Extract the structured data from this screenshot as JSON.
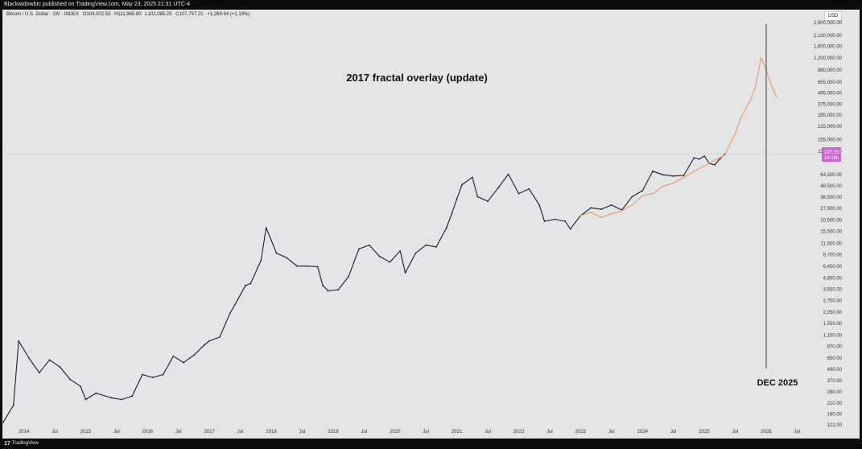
{
  "header": {
    "published_text": "Blackwidowbtc published on TradingView.com, May 23, 2025 21:31 UTC-4"
  },
  "symbol_legend": {
    "name": "Bitcoin / U.S. Dollar · 1W · INDEX",
    "open": "O104,002.53",
    "high": "H111,965.80",
    "low": "L102,085.25",
    "close": "C107,757.21",
    "change": "+1,269.94 (+1.19%)"
  },
  "currency_button": "USD",
  "footer": {
    "logo_mark": "17",
    "brand": "TradingView"
  },
  "colors": {
    "price_line": "#1b1b24",
    "fractal_overlay": "#f0a074",
    "marker_line": "#3a3a3a",
    "price_label_bg": "#c866d0",
    "background": "#e4e5e7"
  },
  "chart_data": {
    "type": "line",
    "scale": "log",
    "title": "2017 fractal overlay (update)",
    "annotation": "DEC 2025",
    "current_price_label": "107,757.21",
    "countdown_label": "14:28h",
    "x_tick_labels": [
      "2014",
      "Jul",
      "2015",
      "Jul",
      "2016",
      "Jul",
      "2017",
      "Jul",
      "2018",
      "Jul",
      "2019",
      "Jul",
      "2020",
      "Jul",
      "2021",
      "Jul",
      "2022",
      "Jul",
      "2023",
      "Jul",
      "2024",
      "Jul",
      "2025",
      "Jul",
      "2026",
      "Jul"
    ],
    "y_tick_labels": [
      "2,900,000.00",
      "2,100,000.00",
      "1,600,000.00",
      "1,200,000.00",
      "880,000.00",
      "655,000.00",
      "495,000.00",
      "375,000.00",
      "285,000.00",
      "215,000.00",
      "155,000.00",
      "115,000.00",
      "64,500.00",
      "48,500.00",
      "36,500.00",
      "27,500.00",
      "20,500.00",
      "15,500.00",
      "11,500.00",
      "8,700.00",
      "6,450.00",
      "4,850.00",
      "3,650.00",
      "2,750.00",
      "2,050.00",
      "1,550.00",
      "1,150.00",
      "870.00",
      "650.00",
      "490.00",
      "370.00",
      "280.00",
      "210.00",
      "160.00",
      "122.00"
    ],
    "ylim": [
      122,
      2900000
    ],
    "xlim": [
      "2013-09",
      "2026-11"
    ],
    "grid": false,
    "series": [
      {
        "kind": "price",
        "x": [
          "2013-09",
          "2013-11",
          "2013-12",
          "2014-02",
          "2014-04",
          "2014-06",
          "2014-08",
          "2014-10",
          "2014-12",
          "2015-01",
          "2015-03",
          "2015-06",
          "2015-08",
          "2015-10",
          "2015-12",
          "2016-02",
          "2016-04",
          "2016-06",
          "2016-08",
          "2016-10",
          "2016-12",
          "2017-01",
          "2017-03",
          "2017-05",
          "2017-06",
          "2017-08",
          "2017-09",
          "2017-11",
          "2017-12",
          "2018-02",
          "2018-04",
          "2018-06",
          "2018-08",
          "2018-10",
          "2018-11",
          "2018-12",
          "2019-02",
          "2019-04",
          "2019-06",
          "2019-08",
          "2019-10",
          "2019-12",
          "2020-02",
          "2020-03",
          "2020-05",
          "2020-07",
          "2020-09",
          "2020-11",
          "2020-12",
          "2021-01",
          "2021-02",
          "2021-04",
          "2021-05",
          "2021-07",
          "2021-09",
          "2021-11",
          "2022-01",
          "2022-03",
          "2022-05",
          "2022-06",
          "2022-08",
          "2022-10",
          "2022-11",
          "2023-01",
          "2023-03",
          "2023-05",
          "2023-07",
          "2023-09",
          "2023-11",
          "2024-01",
          "2024-03",
          "2024-05",
          "2024-07",
          "2024-09",
          "2024-11",
          "2024-12",
          "2025-01",
          "2025-02",
          "2025-03",
          "2025-04",
          "2025-05"
        ],
        "y": [
          130,
          200,
          1000,
          650,
          450,
          620,
          520,
          380,
          320,
          230,
          270,
          240,
          230,
          250,
          430,
          400,
          430,
          680,
          580,
          700,
          900,
          1000,
          1100,
          2000,
          2500,
          4000,
          4200,
          7500,
          17000,
          9000,
          8000,
          6500,
          6500,
          6400,
          4000,
          3500,
          3600,
          5000,
          10000,
          11000,
          8300,
          7200,
          9500,
          5500,
          9000,
          11000,
          10500,
          17000,
          24000,
          35000,
          50000,
          60000,
          37000,
          33000,
          46000,
          65000,
          40000,
          45000,
          30000,
          20000,
          21000,
          20000,
          16500,
          23000,
          28000,
          27000,
          30000,
          26500,
          37000,
          43000,
          70000,
          64000,
          62000,
          63000,
          98000,
          95000,
          102000,
          85000,
          82000,
          95000,
          107757
        ]
      },
      {
        "kind": "fractal_overlay",
        "x": [
          "2023-01",
          "2023-03",
          "2023-05",
          "2023-07",
          "2023-09",
          "2023-11",
          "2024-01",
          "2024-03",
          "2024-05",
          "2024-07",
          "2024-09",
          "2024-11",
          "2025-01",
          "2025-03",
          "2025-05",
          "2025-06",
          "2025-07",
          "2025-08",
          "2025-09",
          "2025-10",
          "2025-11",
          "2025-12",
          "2026-01",
          "2026-02",
          "2026-03"
        ],
        "y": [
          23000,
          25000,
          22000,
          24000,
          26000,
          30000,
          38000,
          40000,
          48000,
          52000,
          60000,
          70000,
          80000,
          92000,
          105000,
          140000,
          180000,
          260000,
          330000,
          420000,
          600000,
          1200000,
          900000,
          600000,
          450000
        ]
      }
    ],
    "marker": {
      "x": "2026-01",
      "label": "DEC 2025"
    }
  }
}
